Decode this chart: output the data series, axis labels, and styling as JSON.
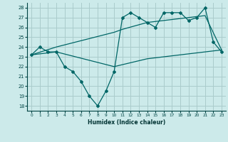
{
  "xlabel": "Humidex (Indice chaleur)",
  "background_color": "#cceaea",
  "grid_color": "#aacccc",
  "line_color": "#006666",
  "xlim": [
    -0.5,
    23.5
  ],
  "ylim": [
    17.5,
    28.5
  ],
  "yticks": [
    18,
    19,
    20,
    21,
    22,
    23,
    24,
    25,
    26,
    27,
    28
  ],
  "xticks": [
    0,
    1,
    2,
    3,
    4,
    5,
    6,
    7,
    8,
    9,
    10,
    11,
    12,
    13,
    14,
    15,
    16,
    17,
    18,
    19,
    20,
    21,
    22,
    23
  ],
  "line1_x": [
    0,
    1,
    2,
    3,
    4,
    5,
    6,
    7,
    8,
    9,
    10,
    11,
    12,
    13,
    14,
    15,
    16,
    17,
    18,
    19,
    20,
    21,
    22,
    23
  ],
  "line1_y": [
    23.2,
    24.0,
    23.5,
    23.5,
    22.0,
    21.5,
    20.5,
    19.0,
    18.0,
    19.5,
    21.5,
    27.0,
    27.5,
    27.0,
    26.5,
    26.0,
    27.5,
    27.5,
    27.5,
    26.7,
    27.0,
    28.0,
    24.5,
    23.5
  ],
  "line2_x": [
    0,
    3,
    10,
    11,
    14,
    21,
    23
  ],
  "line2_y": [
    23.2,
    24.0,
    25.5,
    25.8,
    26.5,
    27.2,
    23.7
  ],
  "line3_x": [
    0,
    3,
    10,
    14,
    21,
    23
  ],
  "line3_y": [
    23.2,
    23.5,
    22.0,
    22.8,
    23.5,
    23.7
  ]
}
